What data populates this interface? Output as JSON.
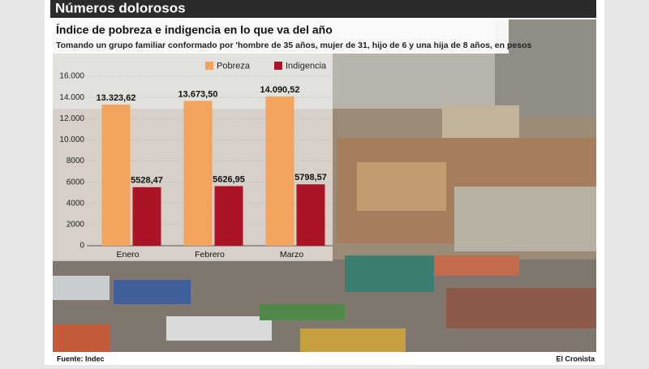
{
  "header": "Números dolorosos",
  "chart_data": {
    "type": "bar",
    "title": "Índice de pobreza e indigencia en lo que va del año",
    "subtitle": "Tomando un grupo familiar conformado por 'hombre de 35 años, mujer de 31, hijo de 6 y una hija de 8 años, en pesos",
    "categories": [
      "Enero",
      "Febrero",
      "Marzo"
    ],
    "series": [
      {
        "name": "Pobreza",
        "color": "#f2a35e",
        "values": [
          13323.62,
          13673.5,
          14090.52
        ],
        "value_labels": [
          "13.323,62",
          "13.673,50",
          "14.090,52"
        ]
      },
      {
        "name": "Indigencia",
        "color": "#ab1426",
        "values": [
          5528.47,
          5626.95,
          5798.57
        ],
        "value_labels": [
          "5528,47",
          "5626,95",
          "5798,57"
        ]
      }
    ],
    "ylim": [
      0,
      16000
    ],
    "yticks": [
      0,
      2000,
      4000,
      6000,
      8000,
      {
        "value": 10000,
        "label": "10.000"
      },
      {
        "value": 12000,
        "label": "12.000"
      },
      {
        "value": 14000,
        "label": "14.000"
      },
      {
        "value": 16000,
        "label": "16.000"
      }
    ],
    "grid": true,
    "legend": "top"
  },
  "footer": {
    "source": "Fuente: Indec",
    "brand": "El Cronista"
  }
}
